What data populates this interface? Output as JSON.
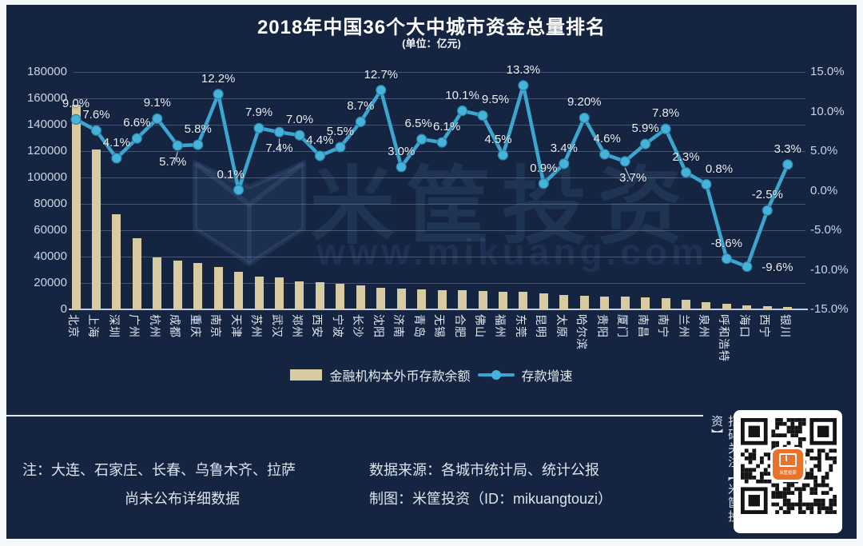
{
  "title": "2018年中国36个大中城市资金总量排名",
  "subtitle": "(单位：亿元)",
  "colors": {
    "background": "#142441",
    "bar": "#d8cba2",
    "line": "#3ba6cf",
    "marker": "#45b3da",
    "grid": "rgba(185,200,225,0.30)",
    "axis_text": "#c9d5e4",
    "point_label_text": "#e9eef4",
    "title_text": "#ffffff",
    "qr_logo_orange": "#e8742c"
  },
  "legend": {
    "bar_label": "金融机构本外币存款余额",
    "line_label": "存款增速"
  },
  "chart_data": {
    "type": "bar",
    "combo": "bar+line",
    "title": "2018年中国36个大中城市资金总量排名",
    "unit_note": "(单位：亿元)",
    "categories": [
      "北京",
      "上海",
      "深圳",
      "广州",
      "杭州",
      "成都",
      "重庆",
      "南京",
      "天津",
      "苏州",
      "武汉",
      "郑州",
      "西安",
      "宁波",
      "长沙",
      "沈阳",
      "济南",
      "青岛",
      "无锡",
      "合肥",
      "佛山",
      "福州",
      "东莞",
      "昆明",
      "太原",
      "哈尔滨",
      "贵阳",
      "厦门",
      "南昌",
      "南宁",
      "兰州",
      "泉州",
      "呼和浩特",
      "海口",
      "西宁",
      "银川"
    ],
    "series": [
      {
        "name": "金融机构本外币存款余额",
        "type": "bar",
        "axis": "left",
        "unit": "亿元",
        "values": [
          155000,
          121000,
          72000,
          54000,
          39500,
          37000,
          35000,
          32000,
          28500,
          25000,
          24500,
          21500,
          20500,
          19500,
          18000,
          16500,
          16000,
          15200,
          14800,
          14600,
          14200,
          13600,
          13200,
          12400,
          10800,
          10400,
          10000,
          9800,
          8800,
          8300,
          7000,
          5500,
          4400,
          3200,
          2200,
          1800
        ]
      },
      {
        "name": "存款增速",
        "type": "line",
        "axis": "right",
        "unit": "%",
        "values": [
          9.0,
          7.6,
          4.1,
          6.6,
          9.1,
          5.7,
          5.8,
          12.2,
          0.1,
          7.9,
          7.4,
          7.0,
          4.4,
          5.5,
          8.7,
          12.7,
          3.0,
          6.5,
          6.1,
          10.1,
          9.5,
          4.5,
          13.3,
          0.9,
          3.4,
          9.2,
          4.6,
          3.7,
          5.9,
          7.8,
          2.3,
          0.8,
          -8.6,
          -9.6,
          -2.5,
          3.3
        ],
        "point_labels": [
          "9.0%",
          "7.6%",
          "4.1%",
          "6.6%",
          "9.1%",
          "5.7%",
          "5.8%",
          "12.2%",
          "0.1%",
          "7.9%",
          "7.4%",
          "7.0%",
          "4.4%",
          "5.5%",
          "8.7%",
          "12.7%",
          "3.0%",
          "6.5%",
          "6.1%",
          "10.1%",
          "9.5%",
          "4.5%",
          "13.3%",
          "0.9%",
          "3.4%",
          "9.20%",
          "4.6%",
          "3.7%",
          "5.9%",
          "7.8%",
          "2.3%",
          "0.8%",
          "-8.6%",
          "-9.6%",
          "-2.5%",
          "3.3%"
        ],
        "label_position": [
          "above",
          "above",
          "above",
          "above",
          "above",
          "below",
          "above",
          "above",
          "above",
          "above",
          "below",
          "above",
          "above",
          "above",
          "above",
          "above",
          "above",
          "above",
          "above",
          "above",
          "above",
          "above",
          "above",
          "above",
          "above",
          "above",
          "above",
          "below",
          "above",
          "above",
          "above",
          "above",
          "above",
          "right",
          "above",
          "above"
        ],
        "label_dx": [
          0,
          0,
          0,
          0,
          0,
          -6,
          0,
          0,
          -10,
          0,
          0,
          0,
          0,
          0,
          0,
          0,
          0,
          -4,
          6,
          0,
          16,
          -6,
          0,
          0,
          0,
          0,
          3,
          10,
          0,
          0,
          0,
          16,
          0,
          12,
          0,
          0
        ],
        "leader_line_indexes": [
          5,
          10,
          27
        ]
      }
    ],
    "left_axis": {
      "min": 0,
      "max": 180000,
      "tick_step": 20000,
      "tick_labels": [
        "180000",
        "160000",
        "140000",
        "120000",
        "100000",
        "80000",
        "60000",
        "40000",
        "20000",
        "0"
      ]
    },
    "right_axis": {
      "min": -15,
      "max": 15,
      "tick_step": 5,
      "tick_labels": [
        "15.0%",
        "10.0%",
        "5.0%",
        "0.0%",
        "-5.0%",
        "-10.0%",
        "-15.0%"
      ]
    },
    "grid": "horizontal on",
    "legend_position": "bottom"
  },
  "watermark": {
    "brand": "米筐投资",
    "url": "www.mikuang.com"
  },
  "footer": {
    "note_line1": "注：大连、石家庄、长春、乌鲁木齐、拉萨",
    "note_line2": "尚未公布详细数据",
    "source_line": "数据来源：各城市统计局、统计公报",
    "credit_line": "制图：米筐投资（ID：mikuangtouzi）",
    "qr_caption": "扫码关注【米筐投资】",
    "qr_logo_text": "米筐投资"
  }
}
